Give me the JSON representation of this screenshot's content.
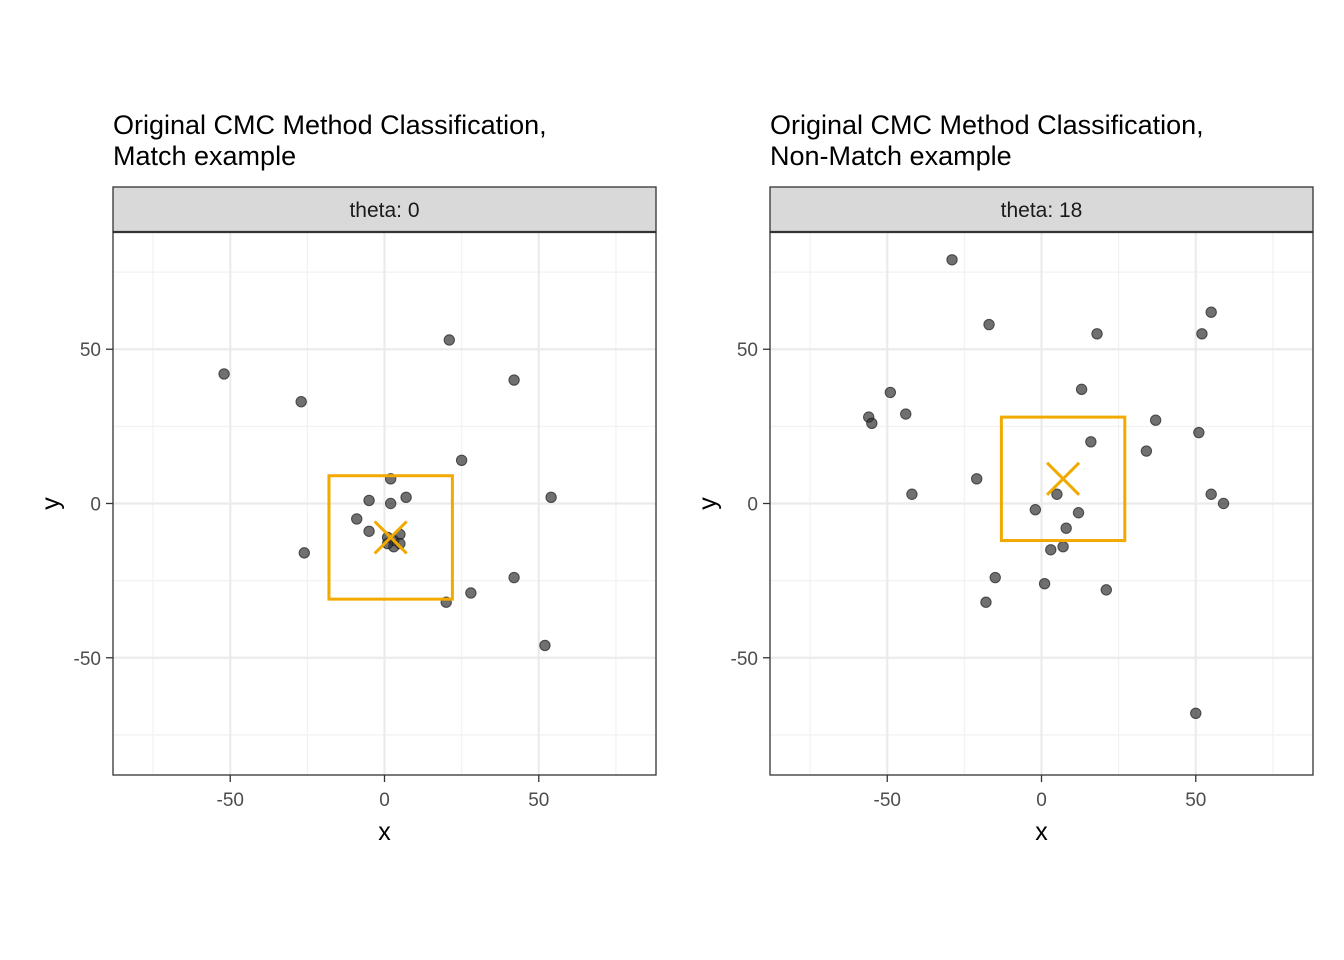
{
  "chart_data": [
    {
      "type": "scatter",
      "title": [
        "Original CMC Method Classification,",
        "Match example"
      ],
      "facet_label": "theta: 0",
      "xlabel": "x",
      "ylabel": "y",
      "xlim": [
        -88,
        88
      ],
      "ylim": [
        -88,
        88
      ],
      "x_ticks": [
        -50,
        0,
        50
      ],
      "x_tick_labels": [
        "-50",
        "0",
        "50"
      ],
      "y_ticks": [
        -50,
        0,
        50
      ],
      "y_tick_labels": [
        "-50",
        "0",
        "50"
      ],
      "grid": true,
      "point_color": "#333333",
      "points": [
        {
          "x": -52,
          "y": 42
        },
        {
          "x": -27,
          "y": 33
        },
        {
          "x": 21,
          "y": 53
        },
        {
          "x": 42,
          "y": 40
        },
        {
          "x": 25,
          "y": 14
        },
        {
          "x": 54,
          "y": 2
        },
        {
          "x": 2,
          "y": 8
        },
        {
          "x": -5,
          "y": 1
        },
        {
          "x": 7,
          "y": 2
        },
        {
          "x": 2,
          "y": 0
        },
        {
          "x": -9,
          "y": -5
        },
        {
          "x": -5,
          "y": -9
        },
        {
          "x": 1,
          "y": -11
        },
        {
          "x": 3,
          "y": -12
        },
        {
          "x": 5,
          "y": -10
        },
        {
          "x": 5,
          "y": -13
        },
        {
          "x": 3,
          "y": -14
        },
        {
          "x": 1,
          "y": -13
        },
        {
          "x": -26,
          "y": -16
        },
        {
          "x": 42,
          "y": -24
        },
        {
          "x": 28,
          "y": -29
        },
        {
          "x": 20,
          "y": -32
        },
        {
          "x": 52,
          "y": -46
        }
      ],
      "box": {
        "xmin": -18,
        "xmax": 22,
        "ymin": -31,
        "ymax": 9,
        "color": "#f2a900"
      },
      "center": {
        "x": 2,
        "y": -11,
        "color": "#f2a900"
      }
    },
    {
      "type": "scatter",
      "title": [
        "Original CMC Method Classification,",
        "Non-Match example"
      ],
      "facet_label": "theta: 18",
      "xlabel": "x",
      "ylabel": "y",
      "xlim": [
        -88,
        88
      ],
      "ylim": [
        -88,
        88
      ],
      "x_ticks": [
        -50,
        0,
        50
      ],
      "x_tick_labels": [
        "-50",
        "0",
        "50"
      ],
      "y_ticks": [
        -50,
        0,
        50
      ],
      "y_tick_labels": [
        "-50",
        "0",
        "50"
      ],
      "grid": true,
      "point_color": "#333333",
      "points": [
        {
          "x": -29,
          "y": 79
        },
        {
          "x": -17,
          "y": 58
        },
        {
          "x": 18,
          "y": 55
        },
        {
          "x": 55,
          "y": 62
        },
        {
          "x": 52,
          "y": 55
        },
        {
          "x": -49,
          "y": 36
        },
        {
          "x": -44,
          "y": 29
        },
        {
          "x": -56,
          "y": 28
        },
        {
          "x": -55,
          "y": 26
        },
        {
          "x": 13,
          "y": 37
        },
        {
          "x": 37,
          "y": 27
        },
        {
          "x": 16,
          "y": 20
        },
        {
          "x": 51,
          "y": 23
        },
        {
          "x": 34,
          "y": 17
        },
        {
          "x": -21,
          "y": 8
        },
        {
          "x": -42,
          "y": 3
        },
        {
          "x": 5,
          "y": 3
        },
        {
          "x": 55,
          "y": 3
        },
        {
          "x": 59,
          "y": 0
        },
        {
          "x": -2,
          "y": -2
        },
        {
          "x": 12,
          "y": -3
        },
        {
          "x": 8,
          "y": -8
        },
        {
          "x": 3,
          "y": -15
        },
        {
          "x": 7,
          "y": -14
        },
        {
          "x": -15,
          "y": -24
        },
        {
          "x": 1,
          "y": -26
        },
        {
          "x": -18,
          "y": -32
        },
        {
          "x": 21,
          "y": -28
        },
        {
          "x": 50,
          "y": -68
        }
      ],
      "box": {
        "xmin": -13,
        "xmax": 27,
        "ymin": -12,
        "ymax": 28,
        "color": "#f2a900"
      },
      "center": {
        "x": 7,
        "y": 8,
        "color": "#f2a900"
      }
    }
  ]
}
